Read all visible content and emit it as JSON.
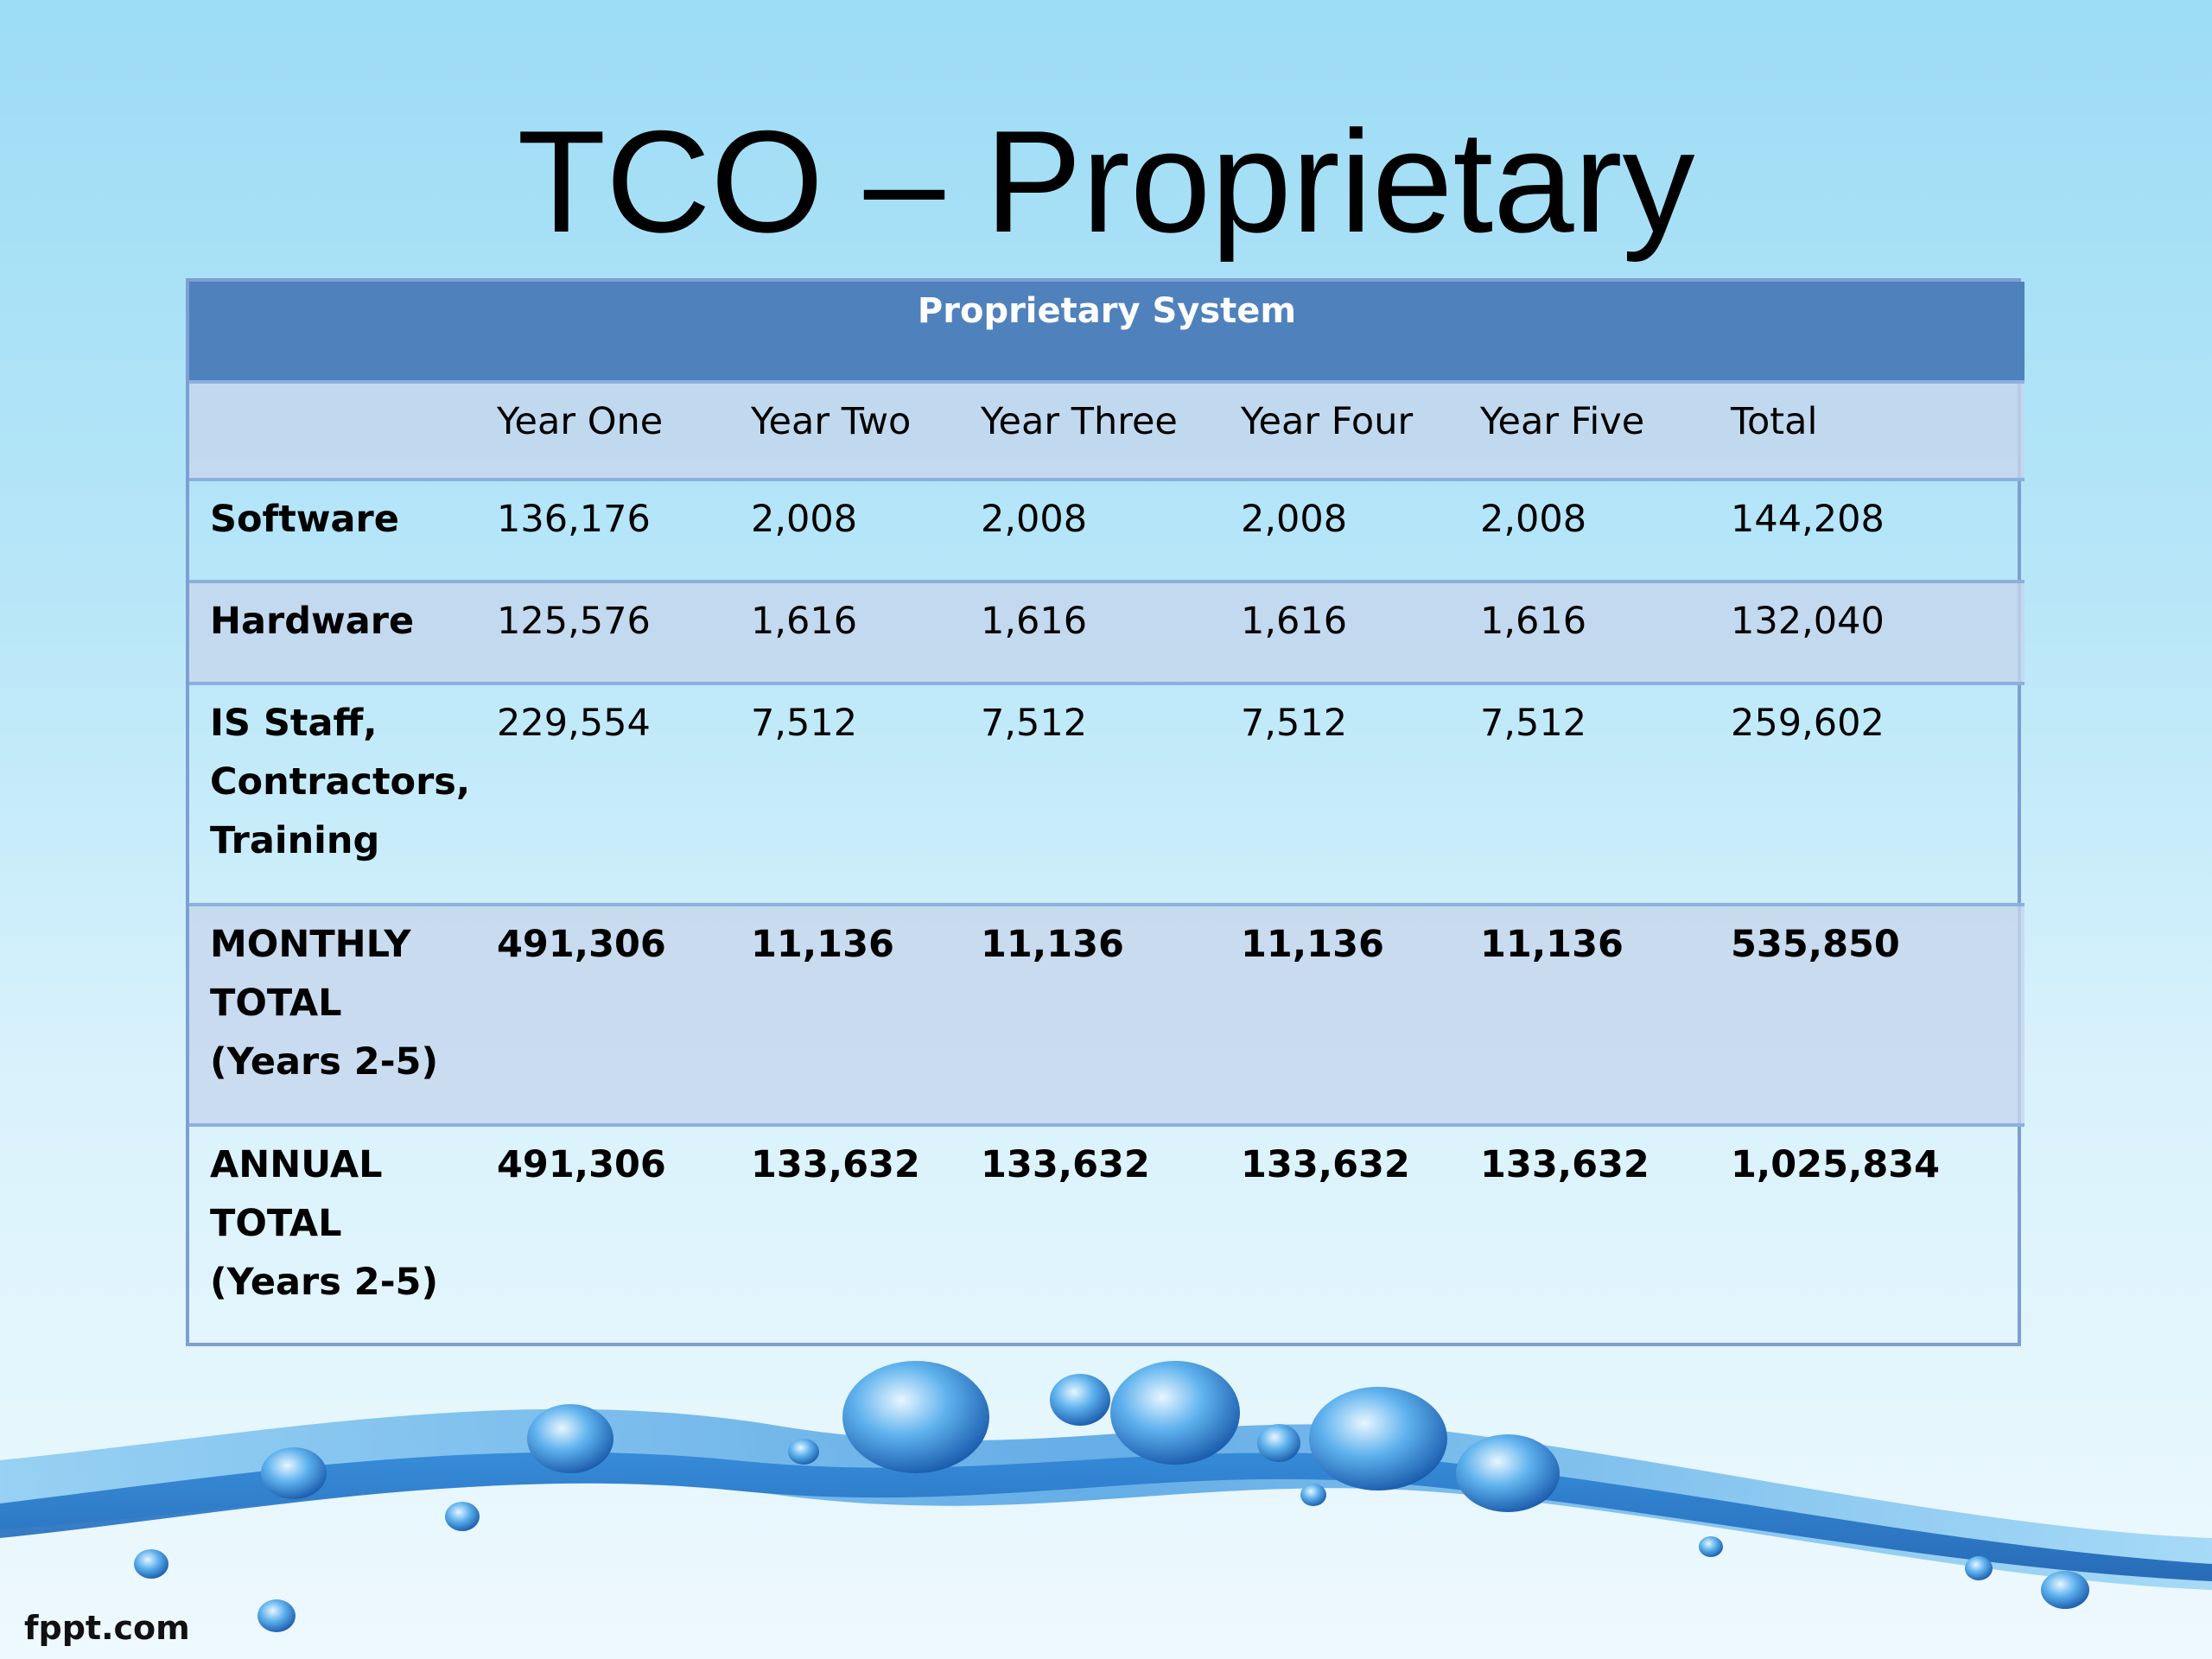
{
  "slide": {
    "title": "TCO – Proprietary",
    "footer": "fppt.com"
  },
  "table": {
    "caption": "Proprietary System",
    "columns": [
      "",
      "Year One",
      "Year Two",
      "Year Three",
      "Year Four",
      "Year Five",
      "Total"
    ],
    "rows": [
      {
        "label_lines": [
          "Software"
        ],
        "values": [
          "136,176",
          "2,008",
          "2,008",
          "2,008",
          "2,008",
          "144,208"
        ]
      },
      {
        "label_lines": [
          "Hardware"
        ],
        "values": [
          "125,576",
          "1,616",
          "1,616",
          "1,616",
          "1,616",
          "132,040"
        ]
      },
      {
        "label_lines": [
          "IS Staff,",
          "Contractors,",
          "Training"
        ],
        "values": [
          "229,554",
          "7,512",
          "7,512",
          "7,512",
          "7,512",
          "259,602"
        ]
      },
      {
        "label_lines": [
          "MONTHLY",
          "TOTAL",
          "(Years 2-5)"
        ],
        "values": [
          "491,306",
          "11,136",
          "11,136",
          "11,136",
          "11,136",
          "535,850"
        ]
      },
      {
        "label_lines": [
          "ANNUAL",
          "TOTAL",
          "(Years 2-5)"
        ],
        "values": [
          "491,306",
          "133,632",
          "133,632",
          "133,632",
          "133,632",
          "1,025,834"
        ]
      }
    ]
  },
  "colors": {
    "header_bg": "#4f81bd",
    "border": "#8cb0de",
    "alt_row": "#c6d6ec"
  }
}
